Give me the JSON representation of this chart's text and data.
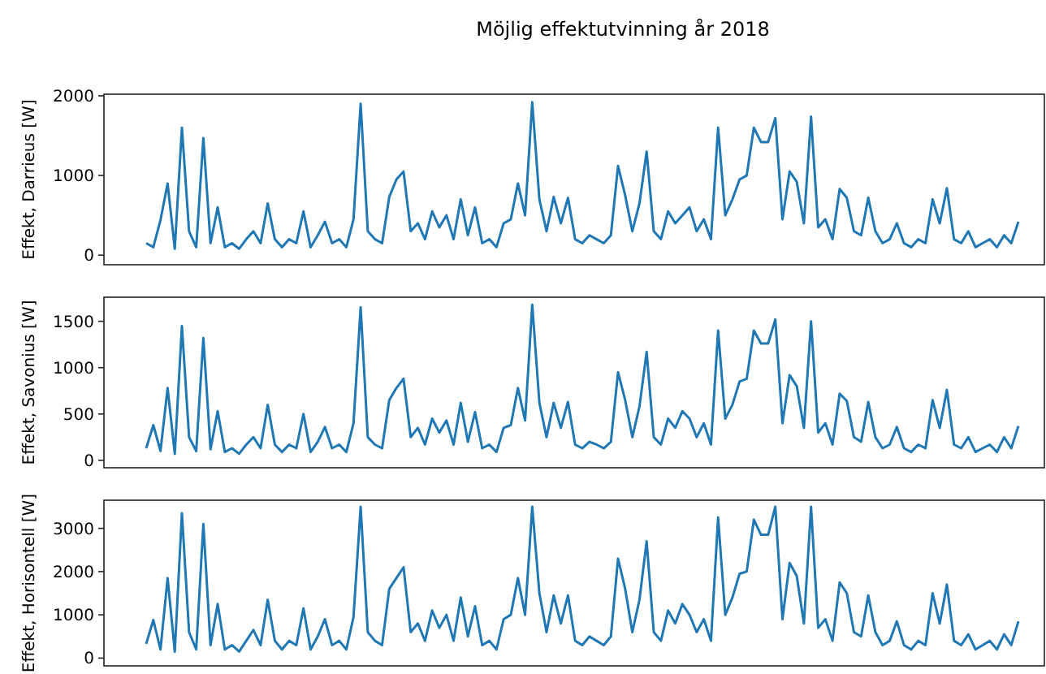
{
  "chart_data": [
    {
      "type": "line",
      "title": "Möjlig effektutvinning år 2018",
      "ylabel": "Effekt, Darrieus [W]",
      "categories": [
        null,
        null,
        null,
        null,
        null,
        null,
        null,
        null,
        null,
        null,
        null,
        null,
        null,
        null,
        null,
        null,
        null,
        null,
        null,
        null,
        null,
        null,
        null,
        null,
        null,
        null,
        null,
        null,
        null,
        null,
        null,
        null,
        null,
        null,
        null,
        null,
        null,
        null,
        null,
        null,
        null,
        null,
        null,
        null,
        null,
        null,
        null,
        null,
        null,
        null,
        null,
        null,
        null,
        null,
        null,
        null,
        null,
        null,
        null,
        null,
        null,
        null,
        null,
        null,
        null,
        null,
        null,
        null,
        null,
        null,
        null,
        null,
        null,
        null,
        null,
        null,
        null,
        null,
        null,
        null,
        null,
        null,
        null,
        null,
        null,
        null,
        null,
        null,
        null,
        null,
        null,
        null,
        null,
        null,
        null,
        null,
        null,
        null,
        null,
        null,
        null,
        null,
        null,
        null,
        null,
        null,
        null,
        null,
        null,
        null,
        null,
        null,
        null,
        null,
        null,
        null,
        null,
        null,
        null,
        null,
        null,
        null,
        null
      ],
      "tick_labels": "y",
      "ylim": [
        -120,
        2020
      ],
      "yticks": [
        0,
        1000,
        2000
      ],
      "grid": false,
      "series": [
        {
          "color": "#1f77b4",
          "values": [
            150,
            100,
            440,
            900,
            80,
            1600,
            300,
            100,
            1470,
            150,
            600,
            100,
            150,
            80,
            200,
            300,
            150,
            650,
            200,
            100,
            200,
            150,
            550,
            100,
            250,
            420,
            150,
            200,
            100,
            450,
            1900,
            300,
            200,
            150,
            730,
            950,
            1050,
            300,
            400,
            200,
            550,
            350,
            500,
            200,
            700,
            250,
            600,
            150,
            200,
            100,
            400,
            450,
            900,
            500,
            1920,
            700,
            300,
            730,
            400,
            720,
            200,
            150,
            250,
            200,
            150,
            250,
            1120,
            750,
            300,
            650,
            1300,
            300,
            200,
            550,
            400,
            500,
            600,
            300,
            450,
            200,
            1600,
            500,
            700,
            950,
            1000,
            1600,
            1420,
            1420,
            1720,
            450,
            1050,
            920,
            400,
            1740,
            350,
            450,
            200,
            830,
            720,
            300,
            250,
            720,
            300,
            150,
            200,
            400,
            150,
            100,
            200,
            150,
            700,
            400,
            840,
            200,
            150,
            300,
            100,
            150,
            200,
            100,
            250,
            150,
            420
          ]
        }
      ]
    },
    {
      "type": "line",
      "ylabel": "Effekt, Savonius [W]",
      "categories": [
        null,
        null,
        null,
        null,
        null,
        null,
        null,
        null,
        null,
        null,
        null,
        null,
        null,
        null,
        null,
        null,
        null,
        null,
        null,
        null,
        null,
        null,
        null,
        null,
        null,
        null,
        null,
        null,
        null,
        null,
        null,
        null,
        null,
        null,
        null,
        null,
        null,
        null,
        null,
        null,
        null,
        null,
        null,
        null,
        null,
        null,
        null,
        null,
        null,
        null,
        null,
        null,
        null,
        null,
        null,
        null,
        null,
        null,
        null,
        null,
        null,
        null,
        null,
        null,
        null,
        null,
        null,
        null,
        null,
        null,
        null,
        null,
        null,
        null,
        null,
        null,
        null,
        null,
        null,
        null,
        null,
        null,
        null,
        null,
        null,
        null,
        null,
        null,
        null,
        null,
        null,
        null,
        null,
        null,
        null,
        null,
        null,
        null,
        null,
        null,
        null,
        null,
        null,
        null,
        null,
        null,
        null,
        null,
        null,
        null,
        null,
        null,
        null,
        null,
        null,
        null,
        null,
        null,
        null,
        null,
        null,
        null,
        null
      ],
      "tick_labels": "y",
      "ylim": [
        -80,
        1760
      ],
      "yticks": [
        0,
        500,
        1000,
        1500
      ],
      "grid": false,
      "series": [
        {
          "color": "#1f77b4",
          "values": [
            130,
            380,
            100,
            780,
            70,
            1450,
            250,
            100,
            1320,
            120,
            530,
            90,
            130,
            70,
            170,
            250,
            130,
            600,
            170,
            90,
            170,
            130,
            500,
            90,
            200,
            360,
            130,
            170,
            90,
            400,
            1650,
            250,
            170,
            130,
            650,
            780,
            880,
            250,
            350,
            170,
            450,
            300,
            430,
            170,
            620,
            200,
            520,
            130,
            170,
            90,
            350,
            380,
            780,
            430,
            1680,
            620,
            250,
            620,
            350,
            630,
            170,
            130,
            200,
            170,
            130,
            200,
            950,
            650,
            250,
            580,
            1170,
            250,
            170,
            450,
            350,
            530,
            450,
            250,
            400,
            170,
            1400,
            450,
            600,
            850,
            880,
            1400,
            1260,
            1260,
            1520,
            400,
            920,
            800,
            350,
            1500,
            300,
            400,
            170,
            720,
            640,
            250,
            200,
            630,
            250,
            130,
            170,
            360,
            130,
            90,
            170,
            130,
            650,
            350,
            760,
            170,
            130,
            250,
            90,
            130,
            170,
            90,
            250,
            130,
            370
          ]
        }
      ]
    },
    {
      "type": "line",
      "ylabel": "Effekt, Horisontell [W]",
      "categories": [
        null,
        null,
        null,
        null,
        null,
        null,
        null,
        null,
        null,
        null,
        null,
        null,
        null,
        null,
        null,
        null,
        null,
        null,
        null,
        null,
        null,
        null,
        null,
        null,
        null,
        null,
        null,
        null,
        null,
        null,
        null,
        null,
        null,
        null,
        null,
        null,
        null,
        null,
        null,
        null,
        null,
        null,
        null,
        null,
        null,
        null,
        null,
        null,
        null,
        null,
        null,
        null,
        null,
        null,
        null,
        null,
        null,
        null,
        null,
        null,
        null,
        null,
        null,
        null,
        null,
        null,
        null,
        null,
        null,
        null,
        null,
        null,
        null,
        null,
        null,
        null,
        null,
        null,
        null,
        null,
        null,
        null,
        null,
        null,
        null,
        null,
        null,
        null,
        null,
        null,
        null,
        null,
        null,
        null,
        null,
        null,
        null,
        null,
        null,
        null,
        null,
        null,
        null,
        null,
        null,
        null,
        null,
        null,
        null,
        null,
        null,
        null,
        null,
        null,
        null,
        null,
        null,
        null,
        null,
        null,
        null,
        null,
        null
      ],
      "tick_labels": "y",
      "ylim": [
        -180,
        3650
      ],
      "yticks": [
        0,
        1000,
        2000,
        3000
      ],
      "grid": false,
      "series": [
        {
          "color": "#1f77b4",
          "values": [
            330,
            880,
            200,
            1850,
            150,
            3350,
            600,
            200,
            3100,
            300,
            1250,
            200,
            300,
            150,
            400,
            650,
            300,
            1350,
            400,
            200,
            400,
            300,
            1150,
            200,
            500,
            900,
            300,
            400,
            200,
            950,
            3500,
            600,
            400,
            300,
            1600,
            1850,
            2100,
            600,
            800,
            400,
            1100,
            700,
            1000,
            400,
            1400,
            500,
            1200,
            300,
            400,
            200,
            900,
            1000,
            1850,
            1000,
            3500,
            1500,
            600,
            1450,
            800,
            1450,
            400,
            300,
            500,
            400,
            300,
            500,
            2300,
            1600,
            600,
            1350,
            2700,
            600,
            400,
            1100,
            800,
            1250,
            1000,
            600,
            900,
            400,
            3250,
            1000,
            1400,
            1950,
            2000,
            3200,
            2850,
            2850,
            3500,
            900,
            2200,
            1900,
            800,
            3500,
            700,
            900,
            400,
            1750,
            1500,
            600,
            500,
            1450,
            600,
            300,
            400,
            850,
            300,
            200,
            400,
            300,
            1500,
            800,
            1700,
            400,
            300,
            550,
            200,
            300,
            400,
            200,
            550,
            300,
            850
          ]
        }
      ]
    }
  ]
}
